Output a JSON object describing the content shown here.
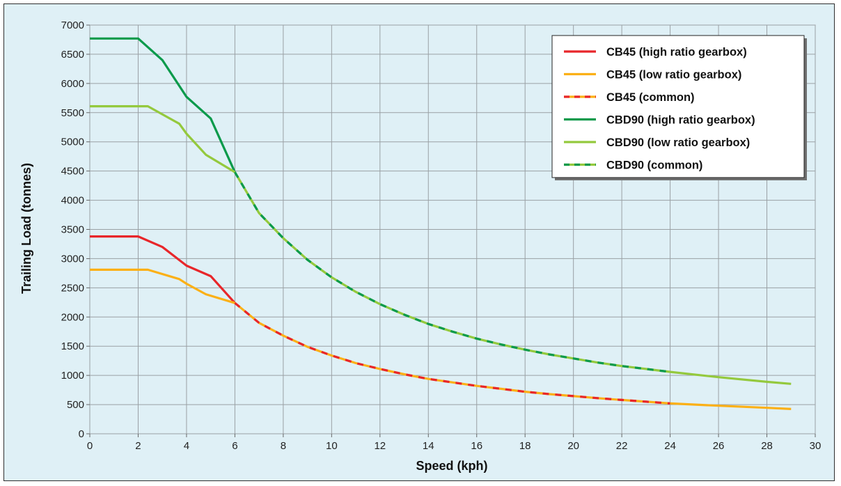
{
  "chart_data": {
    "type": "line",
    "xlabel": "Speed (kph)",
    "ylabel": "Trailing Load (tonnes)",
    "xlim": [
      0,
      30
    ],
    "ylim": [
      0,
      7000
    ],
    "xticks": [
      0,
      2,
      4,
      6,
      8,
      10,
      12,
      14,
      16,
      18,
      20,
      22,
      24,
      26,
      28,
      30
    ],
    "yticks": [
      0,
      500,
      1000,
      1500,
      2000,
      2500,
      3000,
      3500,
      4000,
      4500,
      5000,
      5500,
      6000,
      6500,
      7000
    ],
    "grid": true,
    "legend_position": "top-right",
    "series": [
      {
        "name": "CB45 (high ratio gearbox)",
        "color": "#e8262a",
        "dash": false,
        "points": [
          [
            0,
            3380
          ],
          [
            2,
            3380
          ],
          [
            3,
            3200
          ],
          [
            4,
            2880
          ],
          [
            5,
            2700
          ],
          [
            6,
            2240
          ]
        ]
      },
      {
        "name": "CB45 (low ratio gearbox)",
        "color": "#fbb016",
        "dash": false,
        "points": [
          [
            0,
            2810
          ],
          [
            2.4,
            2810
          ],
          [
            3.7,
            2650
          ],
          [
            4,
            2570
          ],
          [
            4.8,
            2390
          ],
          [
            6,
            2240
          ]
        ]
      },
      {
        "name": "CB45 (common)",
        "color": "#fbb016",
        "dash_color": "#e8262a",
        "dash": true,
        "points": [
          [
            6,
            2240
          ],
          [
            7,
            1900
          ],
          [
            8,
            1680
          ],
          [
            9,
            1490
          ],
          [
            10,
            1340
          ],
          [
            11,
            1210
          ],
          [
            12,
            1110
          ],
          [
            13,
            1020
          ],
          [
            14,
            940
          ],
          [
            15,
            880
          ],
          [
            16,
            820
          ],
          [
            17,
            770
          ],
          [
            18,
            720
          ],
          [
            19,
            680
          ],
          [
            20,
            645
          ],
          [
            21,
            610
          ],
          [
            22,
            580
          ],
          [
            23,
            550
          ],
          [
            24,
            520
          ]
        ]
      },
      {
        "name": "CBD90 (high ratio gearbox)",
        "color": "#0b9a4b",
        "dash": false,
        "points": [
          [
            0,
            6770
          ],
          [
            2,
            6770
          ],
          [
            3,
            6400
          ],
          [
            4,
            5770
          ],
          [
            5,
            5400
          ],
          [
            6,
            4480
          ]
        ]
      },
      {
        "name": "CBD90 (low ratio gearbox)",
        "color": "#94c93d",
        "dash": false,
        "points": [
          [
            0,
            5610
          ],
          [
            2.4,
            5610
          ],
          [
            3.7,
            5310
          ],
          [
            4,
            5140
          ],
          [
            4.8,
            4780
          ],
          [
            6,
            4480
          ]
        ]
      },
      {
        "name": "CBD90 (common)",
        "color": "#94c93d",
        "dash_color": "#0b9a4b",
        "dash": true,
        "points": [
          [
            6,
            4480
          ],
          [
            7,
            3780
          ],
          [
            8,
            3350
          ],
          [
            9,
            2980
          ],
          [
            10,
            2680
          ],
          [
            11,
            2430
          ],
          [
            12,
            2220
          ],
          [
            13,
            2040
          ],
          [
            14,
            1880
          ],
          [
            15,
            1750
          ],
          [
            16,
            1630
          ],
          [
            17,
            1530
          ],
          [
            18,
            1440
          ],
          [
            19,
            1360
          ],
          [
            20,
            1290
          ],
          [
            21,
            1220
          ],
          [
            22,
            1160
          ],
          [
            23,
            1110
          ],
          [
            24,
            1060
          ]
        ]
      },
      {
        "name": "",
        "color": "#fbb016",
        "dash": false,
        "legend": false,
        "points": [
          [
            24,
            520
          ],
          [
            26,
            480
          ],
          [
            28,
            445
          ],
          [
            29,
            425
          ]
        ]
      },
      {
        "name": "",
        "color": "#94c93d",
        "dash": false,
        "legend": false,
        "points": [
          [
            24,
            1060
          ],
          [
            26,
            970
          ],
          [
            28,
            890
          ],
          [
            29,
            855
          ]
        ]
      }
    ]
  }
}
